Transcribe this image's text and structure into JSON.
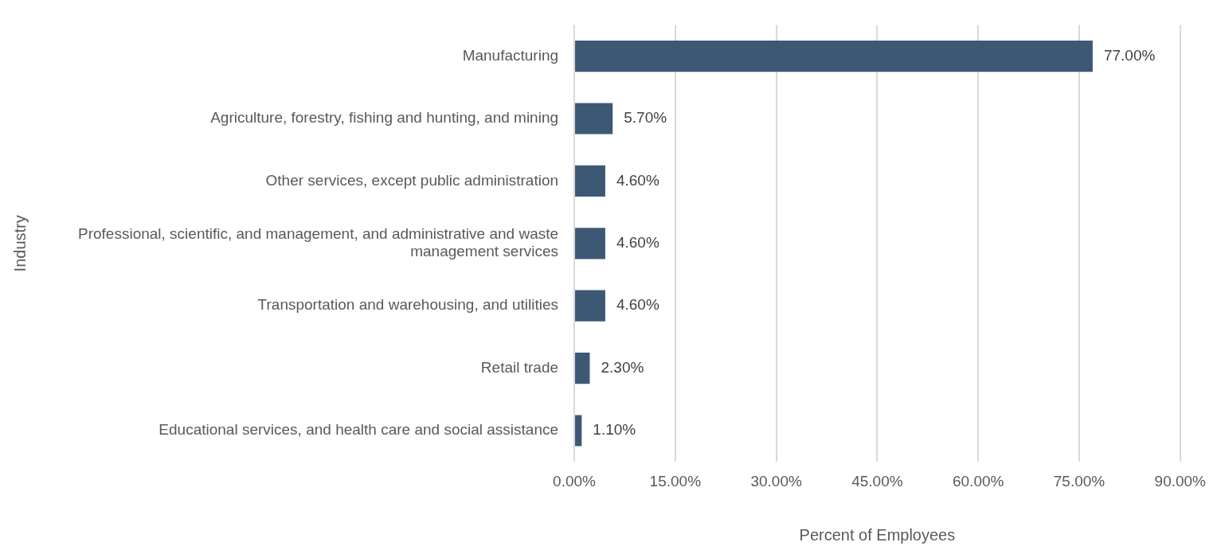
{
  "chart_data": {
    "type": "bar",
    "orientation": "horizontal",
    "xlabel": "Percent of Employees",
    "ylabel": "Industry",
    "categories": [
      "Manufacturing",
      "Agriculture, forestry, fishing and hunting, and mining",
      "Other services, except public administration",
      "Professional, scientific, and management, and administrative and waste management services",
      "Transportation and warehousing, and utilities",
      "Retail trade",
      "Educational services, and health care and social assistance"
    ],
    "values": [
      77,
      5.7,
      4.6,
      4.6,
      4.6,
      2.3,
      1.1
    ],
    "value_labels": [
      "77.00%",
      "5.70%",
      "4.60%",
      "4.60%",
      "4.60%",
      "2.30%",
      "1.10%"
    ],
    "color": "#3d5875",
    "xlim": [
      0,
      90
    ],
    "xticks": [
      {
        "value": 0,
        "label": "0.00%"
      },
      {
        "value": 15,
        "label": "15.00%"
      },
      {
        "value": 30,
        "label": "30.00%"
      },
      {
        "value": 45,
        "label": "45.00%"
      },
      {
        "value": 60,
        "label": "60.00%"
      },
      {
        "value": 75,
        "label": "75.00%"
      },
      {
        "value": 90,
        "label": "90.00%"
      }
    ],
    "grid": "x",
    "legend": false
  }
}
